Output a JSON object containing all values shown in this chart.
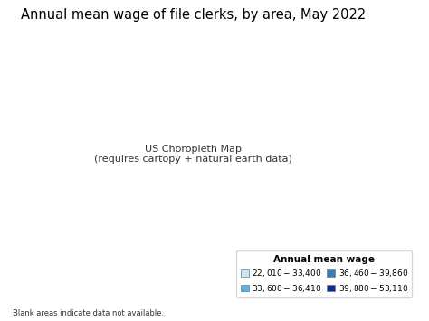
{
  "title": "Annual mean wage of file clerks, by area, May 2022",
  "title_fontsize": 10.5,
  "legend_title": "Annual mean wage",
  "legend_items": [
    {
      "label": "$22,010 - $33,400",
      "color": "#c8e6f5"
    },
    {
      "label": "$33,600 - $36,410",
      "color": "#56b4e9"
    },
    {
      "label": "$36,460 - $39,860",
      "color": "#3a7dbf"
    },
    {
      "label": "$39,880 - $53,110",
      "color": "#0d2b8e"
    }
  ],
  "no_data_color": "#ffffff",
  "edge_color": "#aaaaaa",
  "state_edge_color": "#888888",
  "background_color": "#ffffff",
  "footnote": "Blank areas indicate data not available.",
  "legend_fontsize": 6.5,
  "legend_title_fontsize": 7.5
}
